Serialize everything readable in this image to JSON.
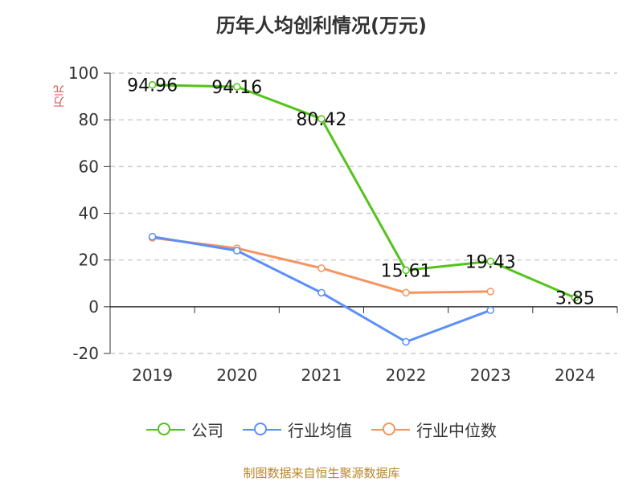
{
  "chart_data": {
    "type": "line",
    "title": "历年人均创利情况(万元)",
    "ylabel": "万元",
    "categories": [
      "2019",
      "2020",
      "2021",
      "2022",
      "2023",
      "2024"
    ],
    "ylim": [
      -20,
      100
    ],
    "yticks": [
      100,
      80,
      60,
      40,
      20,
      0,
      -20
    ],
    "grid": true,
    "legend_position": "bottom",
    "series": [
      {
        "name": "公司",
        "color": "#52c41a",
        "values": [
          94.96,
          94.16,
          80.42,
          15.61,
          19.43,
          3.85
        ],
        "labels": [
          "94.96",
          "94.16",
          "80.42",
          "15.61",
          "19.43",
          "3.85"
        ]
      },
      {
        "name": "行业均值",
        "color": "#5b8ff9",
        "values": [
          30.0,
          24.0,
          6.0,
          -15.0,
          -1.5,
          null
        ]
      },
      {
        "name": "行业中位数",
        "color": "#f6945f",
        "values": [
          29.5,
          25.0,
          16.5,
          6.0,
          6.5,
          null
        ]
      }
    ]
  },
  "footer": "制图数据来自恒生聚源数据库"
}
